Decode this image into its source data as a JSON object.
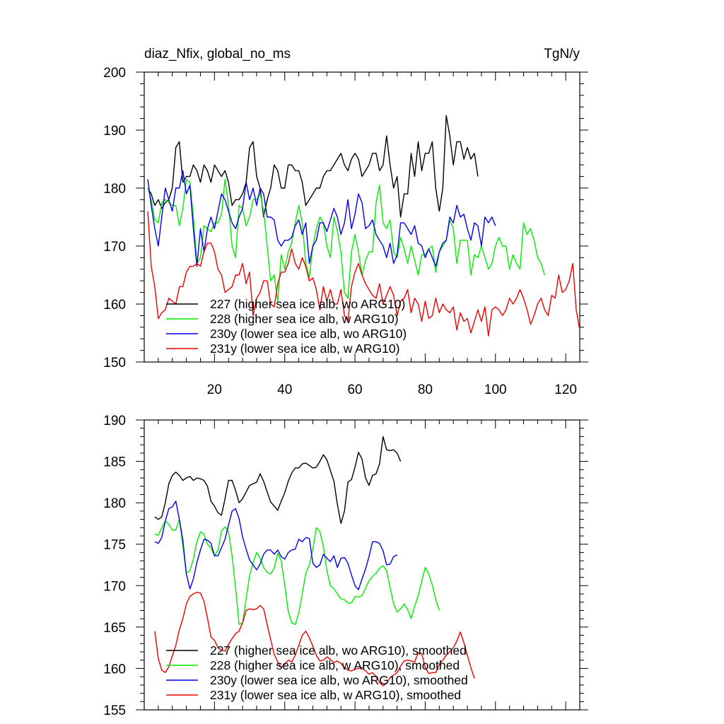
{
  "header": {
    "title_left": "diaz_Nfix, global_no_ms",
    "title_right": "TgN/y"
  },
  "chart_data": [
    {
      "type": "line",
      "name": "top",
      "xlim": [
        0,
        124
      ],
      "ylim": [
        150,
        200
      ],
      "x_ticks": [
        20,
        40,
        60,
        80,
        100,
        120
      ],
      "x_tick_labels": [
        "20",
        "40",
        "60",
        "80",
        "100",
        "120"
      ],
      "y_ticks": [
        150,
        160,
        170,
        180,
        190,
        200
      ],
      "y_tick_labels": [
        "150",
        "160",
        "170",
        "180",
        "190",
        "200"
      ],
      "grid": false,
      "legend_position": "bottom-left",
      "series": [
        {
          "name": "227 (higher sea ice alb, wo ARG10)",
          "color": "#000000",
          "x_start": 1,
          "values": [
            180,
            179,
            177,
            178,
            176.5,
            177.5,
            178,
            180,
            187,
            188,
            181,
            182,
            182,
            184,
            183,
            181,
            184,
            183,
            181,
            184,
            183,
            182,
            183,
            181,
            177,
            178,
            178,
            179,
            181,
            187,
            188,
            182,
            180,
            175,
            178,
            180,
            184,
            183,
            180,
            180,
            184,
            184,
            183,
            183,
            181,
            177,
            178,
            179,
            180,
            180,
            182,
            183,
            183,
            184,
            185,
            186,
            184,
            183,
            185,
            186,
            185,
            182,
            183,
            184,
            186,
            186,
            183,
            184,
            189,
            184,
            180,
            182,
            175,
            179,
            179,
            186,
            182,
            188,
            183,
            186,
            186,
            188,
            180,
            176,
            180,
            192.5,
            189,
            184,
            188,
            188,
            185,
            187,
            185,
            186,
            182
          ]
        },
        {
          "name": "228 (higher sea ice alb, w ARG10)",
          "color": "#00ee00",
          "x_start": 1,
          "values": [
            180,
            178,
            174.5,
            174,
            177.5,
            178,
            177.5,
            177,
            177,
            173.5,
            176.5,
            181.5,
            181,
            175,
            167,
            168,
            173.5,
            173,
            172.5,
            174,
            174,
            175.5,
            181.5,
            177,
            170,
            168,
            177,
            176.5,
            173.5,
            175,
            178,
            178,
            179,
            176,
            170,
            164,
            165,
            160.5,
            168.5,
            166,
            169,
            170.5,
            174,
            177,
            174,
            167,
            164.5,
            170,
            173,
            175,
            174,
            170,
            168,
            175,
            172.5,
            169,
            162,
            161,
            169,
            172,
            169,
            165,
            167.5,
            169,
            169,
            177.5,
            180.5,
            174,
            173,
            174.5,
            169,
            168,
            171.5,
            169.5,
            167,
            170,
            167.5,
            165,
            168.5,
            168.5,
            169.5,
            170,
            165.5,
            169,
            170,
            171,
            174.5,
            173,
            167,
            171,
            171,
            171,
            165,
            168.5,
            168,
            170,
            168,
            166,
            167,
            170,
            171.5,
            170,
            170,
            166,
            168.5,
            167,
            166,
            174,
            172,
            173,
            171,
            168,
            167,
            165
          ]
        },
        {
          "name": "230y (lower sea ice alb, wo ARG10)",
          "color": "#0000ee",
          "x_start": 1,
          "values": [
            181.5,
            177,
            173,
            170,
            175,
            180,
            178,
            176,
            180,
            180,
            183,
            179,
            180.5,
            173,
            166.5,
            173,
            169,
            173,
            175,
            173,
            176,
            179,
            178,
            176,
            174,
            173,
            175,
            176.5,
            181,
            178,
            180,
            177,
            180,
            179,
            175,
            175,
            174.5,
            171,
            170,
            171,
            171,
            171.5,
            173.5,
            174.5,
            172,
            174,
            167,
            170,
            171,
            174,
            174,
            172.5,
            174.5,
            176.5,
            175,
            172,
            174,
            178,
            173,
            175.5,
            179,
            177.5,
            173,
            173.5,
            174.5,
            172,
            171,
            170,
            168,
            170.5,
            167,
            168.5,
            174,
            174,
            173,
            172,
            173.5,
            170.5,
            170,
            168,
            169.5,
            168,
            166.5,
            169,
            170.5,
            171,
            175,
            174,
            177,
            175,
            175.5,
            173,
            171,
            174,
            173.5,
            170,
            175,
            174,
            175,
            173.5
          ]
        },
        {
          "name": "231y (lower sea ice alb, w ARG10)",
          "color": "#ee0000",
          "x_start": 1,
          "values": [
            176,
            166.5,
            163,
            157.5,
            158.5,
            159,
            161,
            160.5,
            160,
            163,
            163,
            165.5,
            166.5,
            166.5,
            167,
            166.5,
            169,
            170.5,
            170.5,
            169,
            166,
            165,
            162,
            162.5,
            163,
            165,
            165,
            167,
            163.5,
            165.5,
            158,
            161,
            162,
            164,
            164,
            160,
            159.5,
            163.5,
            165.5,
            165.5,
            167,
            169.5,
            167,
            166,
            168,
            166.5,
            164,
            164.5,
            162.5,
            159,
            163,
            160.5,
            162.5,
            160,
            160,
            162.5,
            158,
            157,
            163,
            165.5,
            167,
            165,
            163.5,
            162.5,
            161.5,
            161,
            163.5,
            160,
            161.5,
            163,
            161.5,
            158,
            160.5,
            161,
            162.5,
            158.5,
            161,
            160,
            157,
            160.5,
            157.5,
            158,
            161,
            158.5,
            160,
            159,
            158.5,
            159.5,
            155.5,
            158.5,
            157,
            157.5,
            155,
            157,
            159,
            157,
            159.5,
            154.5,
            159,
            159.5,
            159,
            158,
            159,
            161,
            160,
            161,
            162.5,
            161,
            159,
            156.5,
            158,
            160,
            161,
            159,
            158,
            161.5,
            161,
            165,
            162,
            162.5,
            164,
            167,
            159,
            155.5
          ]
        }
      ]
    },
    {
      "type": "line",
      "name": "bottom",
      "xlim": [
        0,
        124
      ],
      "ylim": [
        155,
        190
      ],
      "x_ticks": [
        20,
        40,
        60,
        80,
        100,
        120
      ],
      "x_tick_labels": [],
      "y_ticks": [
        155,
        160,
        165,
        170,
        175,
        180,
        185,
        190
      ],
      "y_tick_labels": [
        "155",
        "160",
        "165",
        "170",
        "175",
        "180",
        "185",
        "190"
      ],
      "grid": false,
      "legend_position": "bottom-left",
      "series": [
        {
          "name": "227 (higher sea ice alb, wo ARG10), smoothed",
          "color": "#000000",
          "x_start": 3,
          "values": [
            178.3,
            178,
            178.3,
            180,
            182.3,
            183.3,
            183.7,
            183.3,
            182.7,
            183,
            183.2,
            182.7,
            183,
            182.9,
            182.7,
            182,
            180.2,
            179.6,
            178.8,
            178.5,
            180.5,
            182.7,
            182.7,
            181.5,
            180,
            180.5,
            181.3,
            182.1,
            182.3,
            182.5,
            183.5,
            182.6,
            181.3,
            180.1,
            179.6,
            179.1,
            180.2,
            181.2,
            182.6,
            183.6,
            184.2,
            184.2,
            184.7,
            184.8,
            184.5,
            184.2,
            184.3,
            185,
            185.8,
            185.2,
            183.9,
            182.6,
            179.8,
            177.5,
            179,
            182.5,
            182.8,
            184.3,
            186.1,
            185.3,
            183,
            182.1,
            183.3,
            183.5,
            184.7,
            188,
            186.4,
            186.3,
            186.4,
            186,
            185
          ]
        },
        {
          "name": "228 (higher sea ice alb, w ARG10), smoothed",
          "color": "#00ee00",
          "x_start": 3,
          "values": [
            176.2,
            176.1,
            177,
            177.8,
            177.4,
            176.7,
            176.7,
            178,
            174.8,
            171.5,
            171.8,
            173.2,
            175.3,
            176.5,
            176.2,
            175,
            174.5,
            173.6,
            174.3,
            176.6,
            177.1,
            176.5,
            173.6,
            169.7,
            165.3,
            165.5,
            168.4,
            171.2,
            172.8,
            174,
            173.3,
            172.2,
            171.6,
            171.4,
            172.1,
            173.9,
            173,
            170.1,
            166.9,
            165.5,
            165.3,
            166.7,
            169,
            171.5,
            172.5,
            174.4,
            177,
            176.5,
            174.7,
            171.8,
            170,
            169.6,
            169,
            168.4,
            168.3,
            167.9,
            167.9,
            168.7,
            168.6,
            168.8,
            169.7,
            170.6,
            171.1,
            171.5,
            172.1,
            172.4,
            171.8,
            169.8,
            167.8,
            166.8,
            167.2,
            167.8,
            167.1,
            166,
            167.5,
            168.8,
            170.5,
            172.2,
            171.4,
            170.1,
            168.3,
            167
          ]
        },
        {
          "name": "230y (lower sea ice alb, wo ARG10), smoothed",
          "color": "#0000ee",
          "x_start": 3,
          "values": [
            175.3,
            175.1,
            175.8,
            177.8,
            179.3,
            179.5,
            180.2,
            178,
            175.5,
            171.4,
            169.6,
            170.8,
            172.8,
            174.3,
            175.6,
            175.5,
            175.1,
            173.6,
            173.6,
            174.6,
            175.6,
            177.3,
            179,
            179.3,
            178.1,
            175.9,
            174.4,
            173.1,
            172.5,
            171.9,
            172.6,
            173.8,
            174.3,
            174.3,
            173.8,
            174.3,
            173.5,
            173.2,
            174,
            174.3,
            174.4,
            175.6,
            175.3,
            175.8,
            175.7,
            172.7,
            172.2,
            172.5,
            173.8,
            173.3,
            172.9,
            173.6,
            172.2,
            173.3,
            173.4,
            172.7,
            171.3,
            170,
            169.5,
            170.8,
            172,
            173.5,
            175.3,
            175.3,
            175.1,
            174.2,
            172.5,
            172.6,
            173.5,
            173.7
          ]
        },
        {
          "name": "231y (lower sea ice alb, w ARG10), smoothed",
          "color": "#ee0000",
          "x_start": 3,
          "values": [
            164.5,
            161.2,
            159.8,
            159.5,
            160.2,
            161.5,
            162.8,
            164.7,
            166,
            167.8,
            168.7,
            169,
            169.2,
            169.1,
            168.1,
            166.1,
            163.8,
            163.4,
            162.5,
            162.2,
            162.1,
            162.9,
            163.6,
            164.2,
            164.5,
            165.5,
            167,
            167.2,
            167.1,
            167.2,
            167.6,
            167.2,
            165.3,
            163.5,
            161.7,
            160.8,
            160.1,
            160.5,
            161,
            160.8,
            161.6,
            162.8,
            164,
            164.5,
            163.7,
            162.7,
            161.6,
            160.9,
            161,
            161.4,
            161.1,
            160.7,
            160.9,
            160.6,
            160.1,
            159.8,
            159.7,
            159.9,
            160,
            160.1,
            159.7,
            159.3,
            159.5,
            159,
            158.3,
            157.9,
            158.2,
            158.9,
            159.2,
            159.5,
            160.3,
            160.9,
            161,
            160.9,
            160.8,
            161.9,
            161.8,
            160.1,
            159.4,
            159.5,
            159.5,
            160.5,
            161,
            161.6,
            162,
            162.5,
            163.3,
            164.4,
            163.1,
            161.6,
            160.1,
            158.8
          ]
        }
      ]
    }
  ]
}
